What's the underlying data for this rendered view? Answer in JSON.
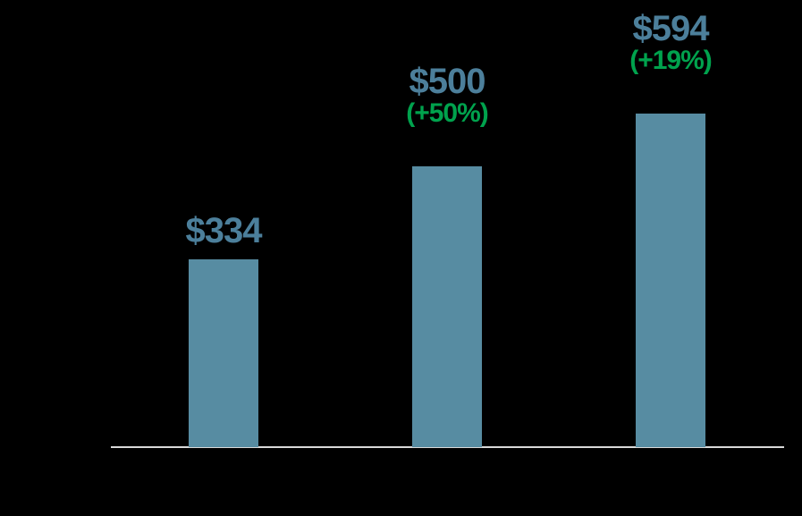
{
  "background_color": "#000000",
  "chart_data": {
    "type": "bar",
    "title": "",
    "xlabel": "",
    "ylabel": "",
    "ylim": [
      0,
      650
    ],
    "grid": false,
    "legend": false,
    "x_axis_line": true,
    "x_axis_line_color": "#D9D9D9",
    "bar_color": "#578CA2",
    "value_label_color": "#4C7F9B",
    "change_label_color": "#00A24D",
    "bars": [
      {
        "value": 334,
        "value_label": "$334",
        "change_label": ""
      },
      {
        "value": 500,
        "value_label": "$500",
        "change_label": "(+50%)"
      },
      {
        "value": 594,
        "value_label": "$594",
        "change_label": "(+19%)"
      }
    ]
  }
}
